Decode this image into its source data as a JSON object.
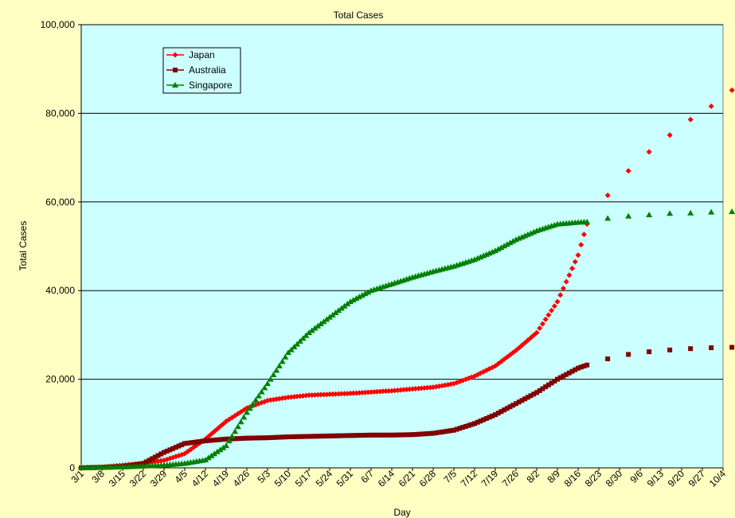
{
  "chart_data": {
    "type": "line",
    "title": "Total Cases",
    "xlabel": "Day",
    "ylabel": "Total Cases",
    "ylim": [
      0,
      100000
    ],
    "y_ticks": [
      0,
      20000,
      40000,
      60000,
      80000,
      100000
    ],
    "y_tick_labels": [
      "0",
      "20,000",
      "40,000",
      "60,000",
      "80,000",
      "100,000"
    ],
    "x_tick_labels": [
      "3/1",
      "3/8",
      "3/15",
      "3/22",
      "3/29",
      "4/5",
      "4/12",
      "4/19",
      "4/26",
      "5/3",
      "5/10",
      "5/17",
      "5/24",
      "5/31",
      "6/7",
      "6/14",
      "6/21",
      "6/28",
      "7/5",
      "7/12",
      "7/19",
      "7/26",
      "8/2",
      "8/9",
      "8/16",
      "8/23",
      "8/30",
      "9/6",
      "9/13",
      "9/20",
      "9/27",
      "10/4"
    ],
    "x_unit": "day index (0 = 3/1)",
    "grid": "horizontal",
    "legend_position": "top-left",
    "plot_background": "#CCFFFF",
    "series": [
      {
        "name": "Japan",
        "color": "#FF0000",
        "marker": "diamond",
        "points": [
          [
            0,
            0
          ],
          [
            7,
            200
          ],
          [
            14,
            600
          ],
          [
            21,
            1000
          ],
          [
            28,
            1700
          ],
          [
            35,
            3200
          ],
          [
            42,
            6500
          ],
          [
            49,
            10500
          ],
          [
            56,
            13500
          ],
          [
            63,
            15200
          ],
          [
            70,
            15900
          ],
          [
            77,
            16400
          ],
          [
            84,
            16600
          ],
          [
            91,
            16800
          ],
          [
            98,
            17100
          ],
          [
            105,
            17400
          ],
          [
            112,
            17800
          ],
          [
            119,
            18200
          ],
          [
            126,
            19000
          ],
          [
            133,
            20700
          ],
          [
            140,
            23000
          ],
          [
            147,
            26500
          ],
          [
            154,
            30500
          ],
          [
            161,
            37500
          ],
          [
            168,
            48000
          ],
          [
            171,
            55000
          ]
        ],
        "projection_points": [
          [
            178,
            61500
          ],
          [
            185,
            67000
          ],
          [
            192,
            71300
          ],
          [
            199,
            75100
          ],
          [
            206,
            78600
          ],
          [
            213,
            81600
          ],
          [
            220,
            85200
          ]
        ]
      },
      {
        "name": "Australia",
        "color": "#800000",
        "marker": "square",
        "points": [
          [
            0,
            0
          ],
          [
            7,
            100
          ],
          [
            14,
            300
          ],
          [
            21,
            1000
          ],
          [
            28,
            3500
          ],
          [
            35,
            5500
          ],
          [
            42,
            6100
          ],
          [
            49,
            6500
          ],
          [
            56,
            6700
          ],
          [
            63,
            6800
          ],
          [
            70,
            7000
          ],
          [
            77,
            7100
          ],
          [
            84,
            7200
          ],
          [
            91,
            7300
          ],
          [
            98,
            7400
          ],
          [
            105,
            7400
          ],
          [
            112,
            7500
          ],
          [
            119,
            7800
          ],
          [
            126,
            8500
          ],
          [
            133,
            10000
          ],
          [
            140,
            12000
          ],
          [
            147,
            14500
          ],
          [
            154,
            17000
          ],
          [
            161,
            20000
          ],
          [
            168,
            22500
          ],
          [
            171,
            23200
          ]
        ],
        "projection_points": [
          [
            178,
            24600
          ],
          [
            185,
            25600
          ],
          [
            192,
            26200
          ],
          [
            199,
            26600
          ],
          [
            206,
            26900
          ],
          [
            213,
            27100
          ],
          [
            220,
            27200
          ]
        ]
      },
      {
        "name": "Singapore",
        "color": "#008000",
        "marker": "triangle",
        "points": [
          [
            0,
            0
          ],
          [
            7,
            100
          ],
          [
            14,
            200
          ],
          [
            21,
            400
          ],
          [
            28,
            600
          ],
          [
            35,
            1000
          ],
          [
            42,
            1800
          ],
          [
            49,
            5000
          ],
          [
            56,
            12500
          ],
          [
            63,
            19000
          ],
          [
            70,
            26000
          ],
          [
            77,
            30500
          ],
          [
            84,
            34000
          ],
          [
            91,
            37500
          ],
          [
            98,
            40000
          ],
          [
            105,
            41500
          ],
          [
            112,
            43000
          ],
          [
            119,
            44300
          ],
          [
            126,
            45500
          ],
          [
            133,
            47000
          ],
          [
            140,
            49000
          ],
          [
            147,
            51500
          ],
          [
            154,
            53500
          ],
          [
            161,
            55000
          ],
          [
            168,
            55400
          ],
          [
            171,
            55500
          ]
        ],
        "projection_points": [
          [
            178,
            56300
          ],
          [
            185,
            56800
          ],
          [
            192,
            57100
          ],
          [
            199,
            57400
          ],
          [
            206,
            57500
          ],
          [
            213,
            57700
          ],
          [
            220,
            57800
          ]
        ]
      }
    ]
  }
}
